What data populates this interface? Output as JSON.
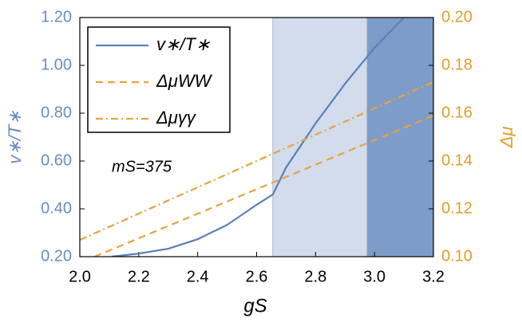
{
  "chart_data": {
    "type": "line",
    "xlabel": "gS",
    "ylabel": "v∗/T∗",
    "y2label": "Δμ",
    "annotation": "mS=375",
    "xlim": [
      2.0,
      3.2
    ],
    "xticks": [
      {
        "value": 2.0,
        "label": "2.0"
      },
      {
        "value": 2.2,
        "label": "2.2"
      },
      {
        "value": 2.4,
        "label": "2.4"
      },
      {
        "value": 2.6,
        "label": "2.6"
      },
      {
        "value": 2.8,
        "label": "2.8"
      },
      {
        "value": 3.0,
        "label": "3.0"
      },
      {
        "value": 3.2,
        "label": "3.2"
      }
    ],
    "ylim": [
      0.2,
      1.2
    ],
    "yticks": [
      {
        "value": 0.2,
        "label": "0.20"
      },
      {
        "value": 0.4,
        "label": "0.40"
      },
      {
        "value": 0.6,
        "label": "0.60"
      },
      {
        "value": 0.8,
        "label": "0.80"
      },
      {
        "value": 1.0,
        "label": "1.00"
      },
      {
        "value": 1.2,
        "label": "1.20"
      }
    ],
    "y2lim": [
      0.1,
      0.2
    ],
    "y2ticks": [
      {
        "value": 0.1,
        "label": "0.10"
      },
      {
        "value": 0.12,
        "label": "0.12"
      },
      {
        "value": 0.14,
        "label": "0.14"
      },
      {
        "value": 0.16,
        "label": "0.16"
      },
      {
        "value": 0.18,
        "label": "0.18"
      },
      {
        "value": 0.2,
        "label": "0.20"
      }
    ],
    "ycolor": "#6b8cc0",
    "y2color": "#e49b2b",
    "shaded_regions": [
      {
        "xrange": [
          2.655,
          2.975
        ],
        "color": "#d2dcec"
      },
      {
        "xrange": [
          2.975,
          3.2
        ],
        "color": "#7e9cc9"
      }
    ],
    "legend": "upper left",
    "series": [
      {
        "name": "v∗/T∗",
        "color": "#5b7fb8",
        "style": "solid",
        "x": [
          2.108,
          2.2,
          2.3,
          2.4,
          2.5,
          2.6,
          2.655,
          2.7,
          2.8,
          2.9,
          3.0,
          3.1
        ],
        "values": [
          0.2,
          0.213,
          0.233,
          0.273,
          0.333,
          0.417,
          0.46,
          0.573,
          0.757,
          0.923,
          1.073,
          1.2
        ]
      },
      {
        "name": "ΔμWW",
        "color": "#e8a33c",
        "style": "dashed",
        "axis": "y2",
        "x": [
          2.05,
          3.2
        ],
        "values": [
          0.1,
          0.159
        ]
      },
      {
        "name": "Δμγγ",
        "color": "#e8a33c",
        "style": "dashdot",
        "axis": "y2",
        "x": [
          2.0,
          3.2
        ],
        "values": [
          0.107,
          0.173
        ]
      }
    ]
  }
}
